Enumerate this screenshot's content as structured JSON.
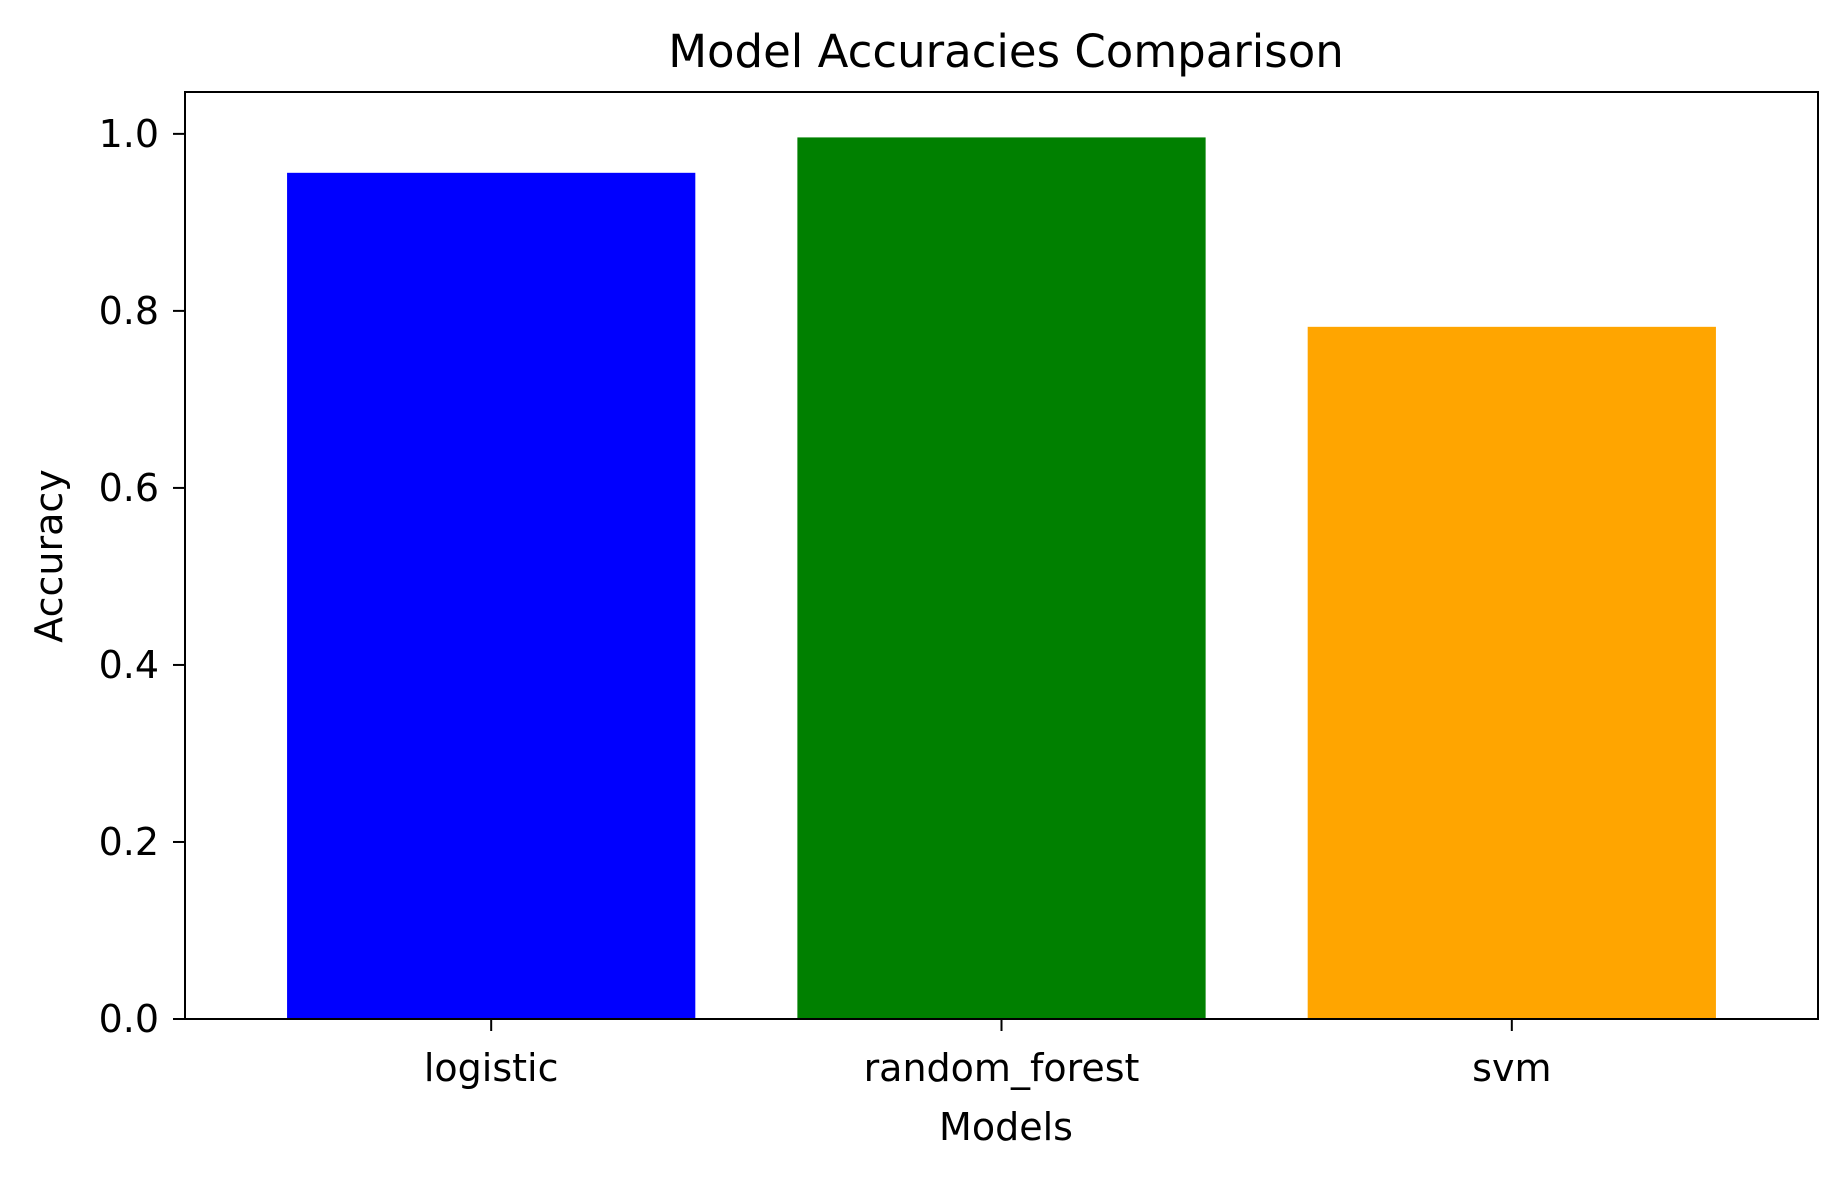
{
  "chart_data": {
    "type": "bar",
    "title": "Model Accuracies Comparison",
    "xlabel": "Models",
    "ylabel": "Accuracy",
    "categories": [
      "logistic",
      "random_forest",
      "svm"
    ],
    "values": [
      0.956,
      0.996,
      0.782
    ],
    "colors": [
      "#0000ff",
      "#008000",
      "#ffa500"
    ],
    "ylim": [
      0,
      1.0473
    ],
    "yticks": [
      0.0,
      0.2,
      0.4,
      0.6,
      0.8,
      1.0
    ],
    "ytick_labels": [
      "0.0",
      "0.2",
      "0.4",
      "0.6",
      "0.8",
      "1.0"
    ],
    "grid": false,
    "legend": "none"
  }
}
